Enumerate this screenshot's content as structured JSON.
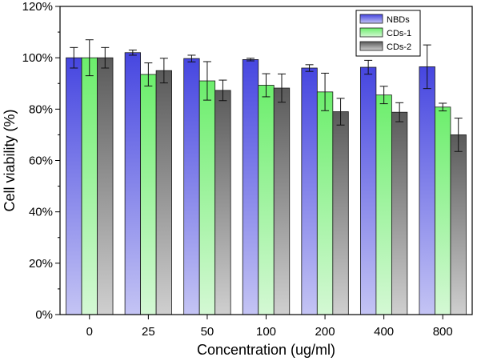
{
  "chart_data": {
    "type": "bar",
    "xlabel": "Concentration (ug/ml)",
    "ylabel": "Cell viability  (%)",
    "ylim": [
      0,
      120
    ],
    "yticks": [
      0,
      20,
      40,
      60,
      80,
      100,
      120
    ],
    "ytick_suffix": "%",
    "categories": [
      "0",
      "25",
      "50",
      "100",
      "200",
      "400",
      "800"
    ],
    "legend_position": "top-right",
    "series": [
      {
        "name": "NBDs",
        "values": [
          100,
          102,
          99.7,
          99.3,
          96,
          96.3,
          96.5
        ],
        "errors": [
          4,
          1,
          1.3,
          0.5,
          1.3,
          2.7,
          8.5
        ],
        "color": "#5050e6"
      },
      {
        "name": "CDs-1",
        "values": [
          100,
          93.5,
          91,
          89.3,
          86.7,
          85.5,
          80.8
        ],
        "errors": [
          7,
          4.5,
          7.5,
          4.5,
          7.3,
          3.4,
          1.5
        ],
        "color": "#7ef07e"
      },
      {
        "name": "CDs-2",
        "values": [
          100,
          95,
          87.3,
          88.2,
          79,
          78.8,
          70
        ],
        "errors": [
          4,
          4.8,
          4,
          5.5,
          5.2,
          3.7,
          6.5
        ],
        "color": "#707070"
      }
    ]
  }
}
